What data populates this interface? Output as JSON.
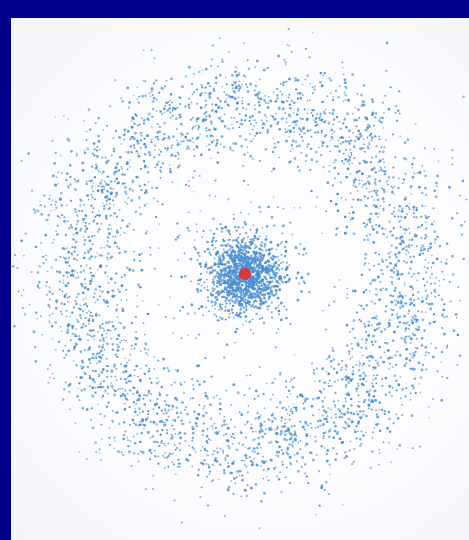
{
  "diagram": {
    "type": "electron-cloud-scatter",
    "colors": {
      "background": "#00008b",
      "panel": "#fdfdff",
      "dots": "#4a8fd2",
      "nucleus": "#d43a3a"
    },
    "shells": [
      {
        "name": "inner-cloud",
        "role": "dense-core"
      },
      {
        "name": "outer-ring",
        "role": "diffuse-shell"
      }
    ],
    "nucleus": {
      "shape": "dot"
    }
  }
}
